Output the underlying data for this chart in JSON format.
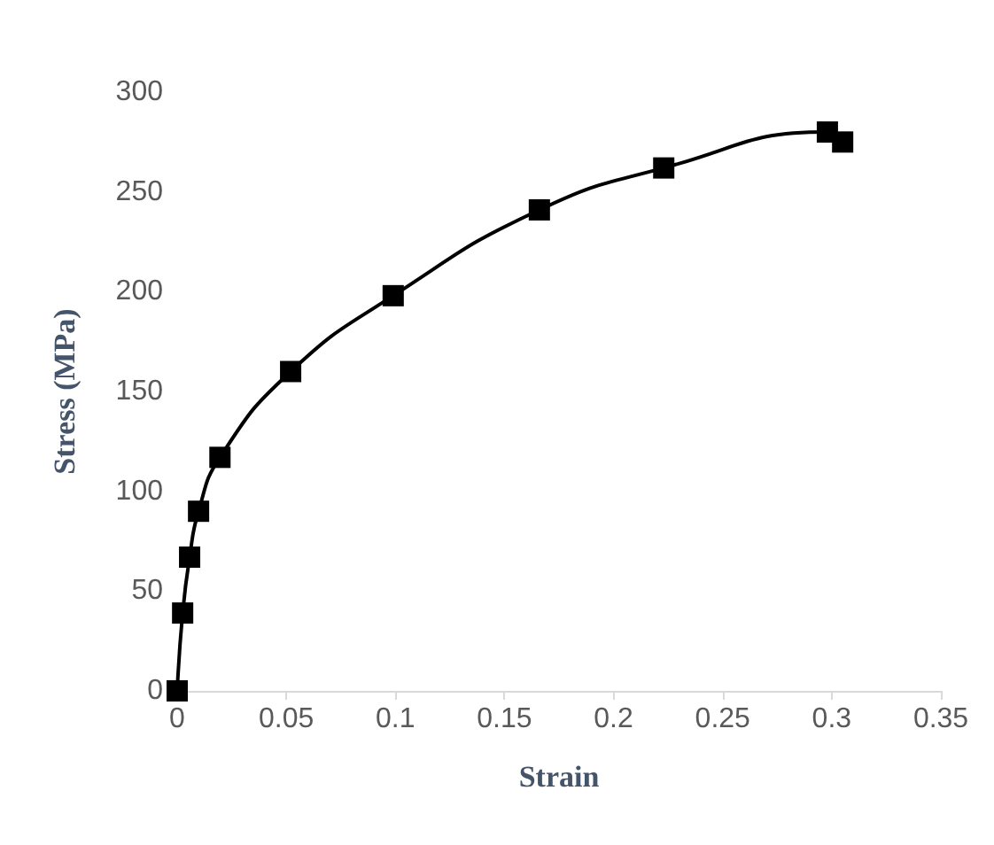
{
  "chart_data": {
    "type": "line",
    "xlabel": "Strain",
    "ylabel": "Stress (MPa)",
    "series": [
      {
        "color": "#000000",
        "x": [
          0,
          0.0025,
          0.0057,
          0.0098,
          0.0196,
          0.052,
          0.099,
          0.166,
          0.223,
          0.298,
          0.305
        ],
        "values": [
          0,
          39,
          67,
          90,
          117,
          160,
          198,
          241,
          262,
          280,
          275
        ]
      }
    ],
    "xlim": [
      0,
      0.35
    ],
    "xticks": [
      0,
      0.05,
      0.1,
      0.15,
      0.2,
      0.25,
      0.3,
      0.35
    ],
    "ylim": [
      0,
      300
    ],
    "yticks": [
      0,
      50,
      100,
      150,
      200,
      250,
      300
    ],
    "grid": false,
    "marker": "square",
    "line_style": "solid"
  }
}
